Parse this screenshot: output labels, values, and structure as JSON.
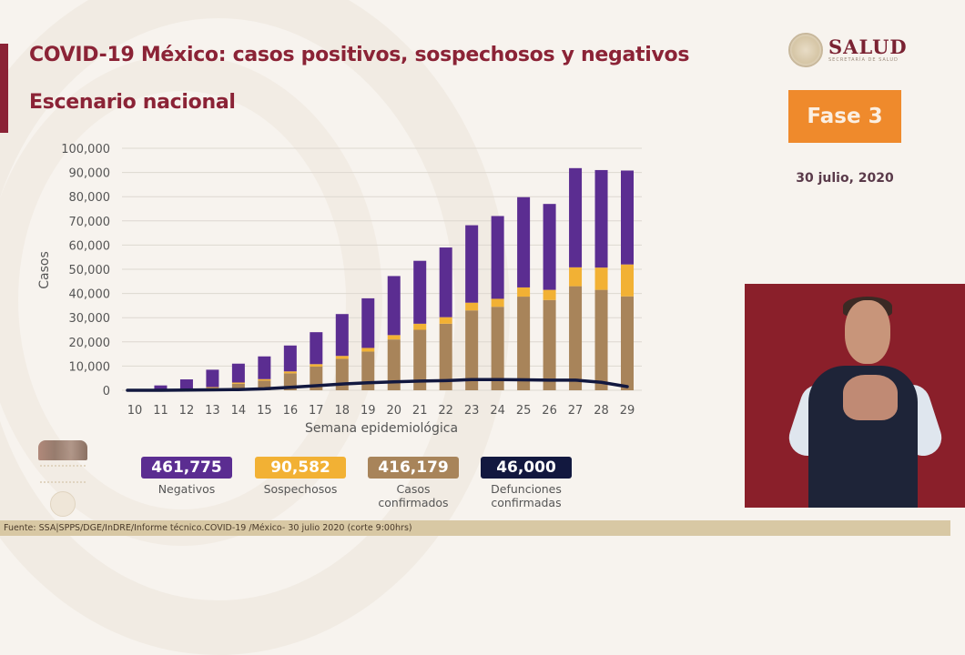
{
  "header": {
    "title": "COVID-19 México: casos positivos, sospechosos y negativos",
    "subtitle": "Escenario nacional"
  },
  "logo": {
    "name": "SALUD",
    "subtitle": "SECRETARÍA DE SALUD"
  },
  "phase": {
    "label": "Fase 3",
    "date": "30 julio, 2020"
  },
  "colors": {
    "negativos": "#5b2d91",
    "sospechosos": "#f2b134",
    "confirmados": "#a8845a",
    "defunciones": "#12183f",
    "title": "#8b2336",
    "phase": "#ef8a2c"
  },
  "summary": [
    {
      "value": "461,775",
      "label": "Negativos",
      "color": "#5b2d91"
    },
    {
      "value": "90,582",
      "label": "Sospechosos",
      "color": "#f2b134"
    },
    {
      "value": "416,179",
      "label": "Casos confirmados",
      "color": "#a8845a"
    },
    {
      "value": "46,000",
      "label": "Defunciones confirmadas",
      "color": "#12183f"
    }
  ],
  "footer": {
    "source": "Fuente: SSA|SPPS/DGE/InDRE/Informe técnico.COVID-19 /México- 30 julio 2020 (corte 9:00hrs)"
  },
  "chart_data": {
    "type": "bar",
    "stacked": true,
    "title": "COVID-19 México: casos positivos, sospechosos y negativos",
    "xlabel": "Semana epidemiológica",
    "ylabel": "Casos",
    "ylim": [
      0,
      100000
    ],
    "yticks": [
      0,
      10000,
      20000,
      30000,
      40000,
      50000,
      60000,
      70000,
      80000,
      90000,
      100000
    ],
    "ytick_labels": [
      "0",
      "10,000",
      "20,000",
      "30,000",
      "40,000",
      "50,000",
      "60,000",
      "70,000",
      "80,000",
      "90,000",
      "100,000"
    ],
    "grid": true,
    "categories": [
      "10",
      "11",
      "12",
      "13",
      "14",
      "15",
      "16",
      "17",
      "18",
      "19",
      "20",
      "21",
      "22",
      "23",
      "24",
      "25",
      "26",
      "27",
      "28",
      "29"
    ],
    "series": [
      {
        "name": "Casos confirmados",
        "kind": "bar",
        "color": "#a8845a",
        "values": [
          0,
          200,
          400,
          1000,
          2700,
          4000,
          7000,
          9800,
          13000,
          16000,
          21000,
          25000,
          27500,
          33000,
          34500,
          38700,
          37300,
          43000,
          41500,
          38800
        ]
      },
      {
        "name": "Sospechosos",
        "kind": "bar",
        "color": "#f2b134",
        "values": [
          0,
          100,
          200,
          300,
          500,
          600,
          800,
          1000,
          1200,
          1500,
          1800,
          2500,
          2700,
          3200,
          3300,
          3800,
          4200,
          7800,
          9200,
          13200
        ]
      },
      {
        "name": "Negativos",
        "kind": "bar",
        "color": "#5b2d91",
        "values": [
          300,
          1700,
          3900,
          7200,
          7800,
          9400,
          10700,
          13200,
          17300,
          20500,
          24400,
          26000,
          28800,
          32000,
          34200,
          37300,
          35500,
          41000,
          40300,
          38800
        ]
      },
      {
        "name": "Defunciones confirmadas",
        "kind": "line",
        "color": "#12183f",
        "values": [
          0,
          0,
          100,
          200,
          300,
          600,
          1200,
          1900,
          2600,
          3100,
          3500,
          3800,
          4000,
          4400,
          4400,
          4300,
          4200,
          4200,
          3300,
          1500
        ]
      }
    ]
  }
}
